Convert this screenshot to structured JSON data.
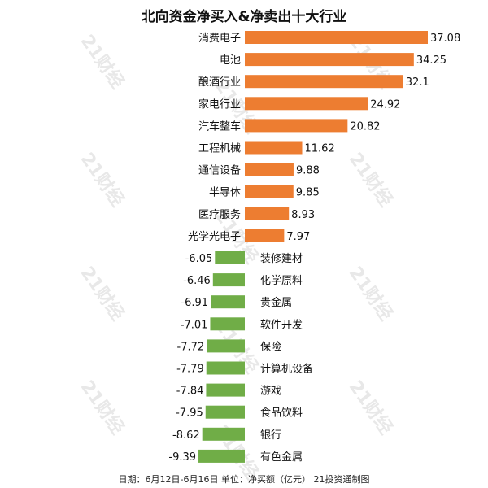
{
  "chart_data": {
    "type": "bar",
    "orientation": "horizontal",
    "title": "北向资金净买入&净卖出十大行业",
    "categories": [
      "消费电子",
      "电池",
      "酿酒行业",
      "家电行业",
      "汽车整车",
      "工程机械",
      "通信设备",
      "半导体",
      "医疗服务",
      "光学光电子",
      "装修建材",
      "化学原料",
      "贵金属",
      "软件开发",
      "保险",
      "计算机设备",
      "游戏",
      "食品饮料",
      "银行",
      "有色金属"
    ],
    "values": [
      37.08,
      34.25,
      32.1,
      24.92,
      20.82,
      11.62,
      9.88,
      9.85,
      8.93,
      7.97,
      -6.05,
      -6.46,
      -6.91,
      -7.01,
      -7.72,
      -7.79,
      -7.84,
      -7.95,
      -8.62,
      -9.39
    ],
    "value_labels": [
      "37.08",
      "34.25",
      "32.1",
      "24.92",
      "20.82",
      "11.62",
      "9.88",
      "9.85",
      "8.93",
      "7.97",
      "-6.05",
      "-6.46",
      "-6.91",
      "-7.01",
      "-7.72",
      "-7.79",
      "-7.84",
      "-7.95",
      "-8.62",
      "-9.39"
    ],
    "colors": {
      "positive": "#ED7D31",
      "negative": "#70AD47"
    },
    "xlim": [
      -9.39,
      37.08
    ],
    "grid": false,
    "legend": "none"
  },
  "footer": "日期：6月12日-6月16日 单位：净买额（亿元） 21投资通制图",
  "watermark": "21财经"
}
